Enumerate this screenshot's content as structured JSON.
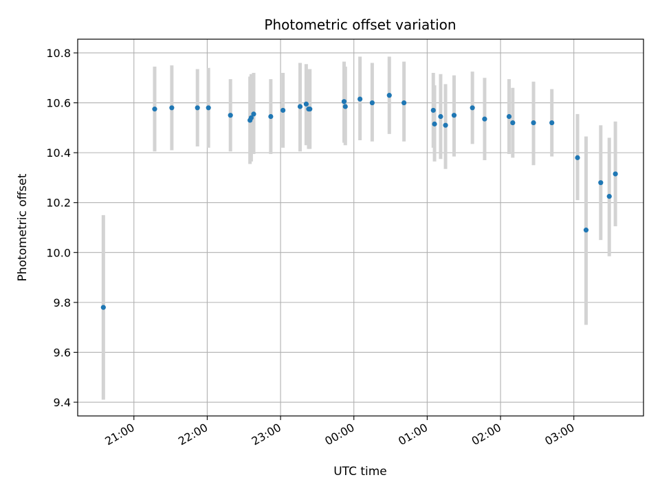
{
  "chart_data": {
    "type": "scatter",
    "title": "Photometric offset variation",
    "xlabel": "UTC time",
    "ylabel": "Photometric offset",
    "x_ticks": [
      "21:00",
      "22:00",
      "23:00",
      "00:00",
      "01:00",
      "02:00",
      "03:00"
    ],
    "y_ticks": [
      "9.4",
      "9.6",
      "9.8",
      "10.0",
      "10.2",
      "10.4",
      "10.6",
      "10.8"
    ],
    "x_tick_values": [
      "21:00",
      "22:00",
      "23:00",
      "00:00",
      "01:00",
      "02:00",
      "03:00"
    ],
    "y_tick_values": [
      9.4,
      9.6,
      9.8,
      10.0,
      10.2,
      10.4,
      10.6,
      10.8
    ],
    "xlim": [
      "20:14",
      "03:57"
    ],
    "ylim": [
      9.345,
      10.855
    ],
    "grid": true,
    "colors": {
      "point": "#1f77b4",
      "errorbar": "#d3d3d3",
      "grid": "#b0b0b0"
    },
    "series": [
      {
        "points": [
          {
            "x": "20:35",
            "y": 9.78,
            "ylow": 9.41,
            "yhigh": 10.15
          },
          {
            "x": "21:17",
            "y": 10.575,
            "ylow": 10.405,
            "yhigh": 10.745
          },
          {
            "x": "21:31",
            "y": 10.58,
            "ylow": 10.41,
            "yhigh": 10.75
          },
          {
            "x": "21:52",
            "y": 10.58,
            "ylow": 10.425,
            "yhigh": 10.735
          },
          {
            "x": "22:01",
            "y": 10.58,
            "ylow": 10.42,
            "yhigh": 10.74
          },
          {
            "x": "22:19",
            "y": 10.55,
            "ylow": 10.405,
            "yhigh": 10.695
          },
          {
            "x": "22:35",
            "y": 10.53,
            "ylow": 10.355,
            "yhigh": 10.705
          },
          {
            "x": "22:36",
            "y": 10.54,
            "ylow": 10.365,
            "yhigh": 10.715
          },
          {
            "x": "22:38",
            "y": 10.555,
            "ylow": 10.395,
            "yhigh": 10.72
          },
          {
            "x": "22:52",
            "y": 10.545,
            "ylow": 10.395,
            "yhigh": 10.695
          },
          {
            "x": "23:02",
            "y": 10.57,
            "ylow": 10.42,
            "yhigh": 10.72
          },
          {
            "x": "23:16",
            "y": 10.585,
            "ylow": 10.405,
            "yhigh": 10.76
          },
          {
            "x": "23:21",
            "y": 10.595,
            "ylow": 10.43,
            "yhigh": 10.755
          },
          {
            "x": "23:23",
            "y": 10.575,
            "ylow": 10.415,
            "yhigh": 10.735
          },
          {
            "x": "23:24",
            "y": 10.575,
            "ylow": 10.415,
            "yhigh": 10.735
          },
          {
            "x": "23:52",
            "y": 10.605,
            "ylow": 10.44,
            "yhigh": 10.765
          },
          {
            "x": "23:53",
            "y": 10.585,
            "ylow": 10.43,
            "yhigh": 10.745
          },
          {
            "x": "00:05",
            "y": 10.615,
            "ylow": 10.45,
            "yhigh": 10.785
          },
          {
            "x": "00:15",
            "y": 10.6,
            "ylow": 10.445,
            "yhigh": 10.76
          },
          {
            "x": "00:29",
            "y": 10.63,
            "ylow": 10.475,
            "yhigh": 10.785
          },
          {
            "x": "00:41",
            "y": 10.6,
            "ylow": 10.445,
            "yhigh": 10.765
          },
          {
            "x": "01:05",
            "y": 10.57,
            "ylow": 10.42,
            "yhigh": 10.72
          },
          {
            "x": "01:06",
            "y": 10.515,
            "ylow": 10.365,
            "yhigh": 10.67
          },
          {
            "x": "01:11",
            "y": 10.545,
            "ylow": 10.375,
            "yhigh": 10.715
          },
          {
            "x": "01:15",
            "y": 10.51,
            "ylow": 10.335,
            "yhigh": 10.675
          },
          {
            "x": "01:22",
            "y": 10.55,
            "ylow": 10.385,
            "yhigh": 10.71
          },
          {
            "x": "01:37",
            "y": 10.58,
            "ylow": 10.435,
            "yhigh": 10.725
          },
          {
            "x": "01:47",
            "y": 10.535,
            "ylow": 10.37,
            "yhigh": 10.7
          },
          {
            "x": "02:07",
            "y": 10.545,
            "ylow": 10.395,
            "yhigh": 10.695
          },
          {
            "x": "02:10",
            "y": 10.52,
            "ylow": 10.38,
            "yhigh": 10.66
          },
          {
            "x": "02:27",
            "y": 10.52,
            "ylow": 10.35,
            "yhigh": 10.685
          },
          {
            "x": "02:42",
            "y": 10.52,
            "ylow": 10.385,
            "yhigh": 10.655
          },
          {
            "x": "03:03",
            "y": 10.38,
            "ylow": 10.21,
            "yhigh": 10.555
          },
          {
            "x": "03:10",
            "y": 10.09,
            "ylow": 9.71,
            "yhigh": 10.465
          },
          {
            "x": "03:22",
            "y": 10.28,
            "ylow": 10.05,
            "yhigh": 10.51
          },
          {
            "x": "03:29",
            "y": 10.225,
            "ylow": 9.985,
            "yhigh": 10.46
          },
          {
            "x": "03:34",
            "y": 10.315,
            "ylow": 10.105,
            "yhigh": 10.525
          }
        ]
      }
    ]
  }
}
